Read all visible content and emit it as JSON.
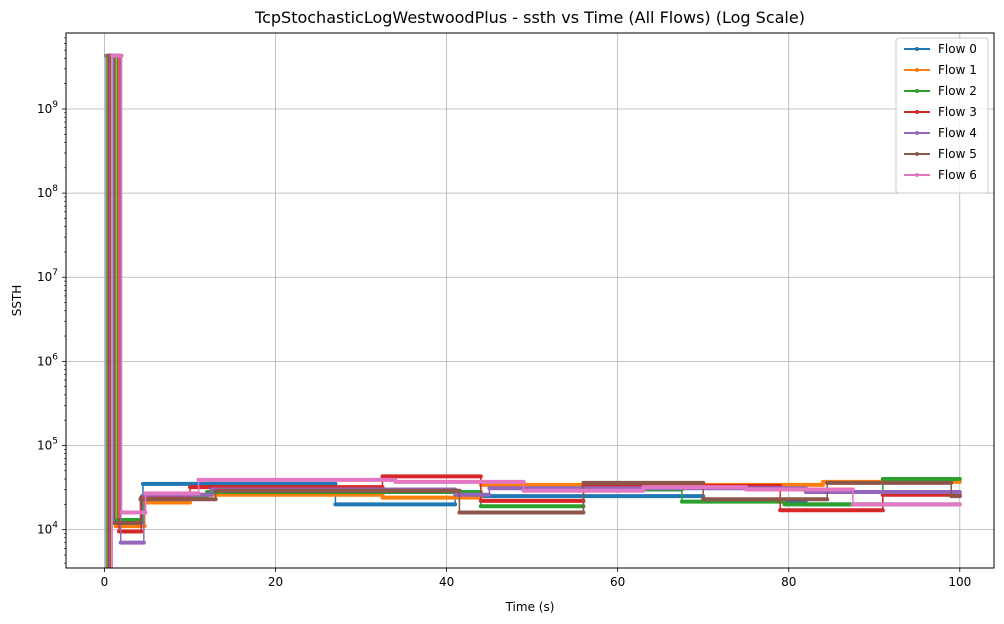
{
  "chart_data": {
    "type": "line",
    "title": "TcpStochasticLogWestwoodPlus - ssth vs Time (All Flows) (Log Scale)",
    "xlabel": "Time (s)",
    "ylabel": "SSTH",
    "xscale": "linear",
    "yscale": "log",
    "xlim": [
      -4.5,
      104
    ],
    "ylim": [
      3500,
      8000000000
    ],
    "x_ticks": [
      0,
      20,
      40,
      60,
      80,
      100
    ],
    "y_ticks": [
      {
        "value": 10000,
        "base": "10",
        "exp": "4"
      },
      {
        "value": 100000,
        "base": "10",
        "exp": "5"
      },
      {
        "value": 1000000,
        "base": "10",
        "exp": "6"
      },
      {
        "value": 10000000,
        "base": "10",
        "exp": "7"
      },
      {
        "value": 100000000,
        "base": "10",
        "exp": "8"
      },
      {
        "value": 1000000000,
        "base": "10",
        "exp": "9"
      }
    ],
    "grid": true,
    "legend_position": "top-right",
    "series": [
      {
        "name": "Flow 0",
        "color": "#1f77b4",
        "points": [
          [
            0.2,
            1000
          ],
          [
            0.2,
            4294967295
          ],
          [
            1.1,
            4294967295
          ],
          [
            1.1,
            12000
          ],
          [
            4.5,
            12000
          ],
          [
            4.5,
            35000
          ],
          [
            27,
            35000
          ],
          [
            27,
            20000
          ],
          [
            41,
            20000
          ],
          [
            41,
            25000
          ],
          [
            70,
            25000
          ],
          [
            70,
            22000
          ],
          [
            82,
            22000
          ],
          [
            82,
            20000
          ],
          [
            100,
            20000
          ]
        ]
      },
      {
        "name": "Flow 1",
        "color": "#ff7f0e",
        "points": [
          [
            0.3,
            1000
          ],
          [
            0.3,
            4294967295
          ],
          [
            1.3,
            4294967295
          ],
          [
            1.3,
            11000
          ],
          [
            4.7,
            11000
          ],
          [
            4.7,
            21000
          ],
          [
            10,
            21000
          ],
          [
            10,
            26000
          ],
          [
            32.5,
            26000
          ],
          [
            32.5,
            24000
          ],
          [
            44,
            24000
          ],
          [
            44,
            34000
          ],
          [
            84,
            34000
          ],
          [
            84,
            37000
          ],
          [
            100,
            37000
          ]
        ]
      },
      {
        "name": "Flow 2",
        "color": "#2ca02c",
        "points": [
          [
            0.4,
            1000
          ],
          [
            0.4,
            4294967295
          ],
          [
            1.5,
            4294967295
          ],
          [
            1.5,
            13000
          ],
          [
            4.4,
            13000
          ],
          [
            4.4,
            25000
          ],
          [
            12,
            25000
          ],
          [
            12,
            28000
          ],
          [
            44,
            28000
          ],
          [
            44,
            19000
          ],
          [
            56,
            19000
          ],
          [
            56,
            30000
          ],
          [
            67.5,
            30000
          ],
          [
            67.5,
            21500
          ],
          [
            79.5,
            21500
          ],
          [
            79.5,
            20000
          ],
          [
            91,
            20000
          ],
          [
            91,
            40000
          ],
          [
            100,
            40000
          ]
        ]
      },
      {
        "name": "Flow 3",
        "color": "#d62728",
        "points": [
          [
            0.5,
            1000
          ],
          [
            0.5,
            4294967295
          ],
          [
            1.7,
            4294967295
          ],
          [
            1.7,
            9500
          ],
          [
            4.3,
            9500
          ],
          [
            4.3,
            24000
          ],
          [
            10,
            24000
          ],
          [
            10,
            32000
          ],
          [
            32.5,
            32000
          ],
          [
            32.5,
            43000
          ],
          [
            44,
            43000
          ],
          [
            44,
            22000
          ],
          [
            56,
            22000
          ],
          [
            56,
            33000
          ],
          [
            79,
            33000
          ],
          [
            79,
            17000
          ],
          [
            91,
            17000
          ],
          [
            91,
            26000
          ],
          [
            100,
            26000
          ]
        ]
      },
      {
        "name": "Flow 4",
        "color": "#9467bd",
        "points": [
          [
            0.6,
            1000
          ],
          [
            0.6,
            4294967295
          ],
          [
            1.9,
            4294967295
          ],
          [
            1.9,
            7000
          ],
          [
            4.6,
            7000
          ],
          [
            4.6,
            26000
          ],
          [
            12.5,
            26000
          ],
          [
            12.5,
            30000
          ],
          [
            41,
            30000
          ],
          [
            41,
            26000
          ],
          [
            45,
            26000
          ],
          [
            45,
            31000
          ],
          [
            82,
            31000
          ],
          [
            82,
            28000
          ],
          [
            100,
            28000
          ]
        ]
      },
      {
        "name": "Flow 5",
        "color": "#8c564b",
        "points": [
          [
            0.7,
            1000
          ],
          [
            0.7,
            4294967295
          ],
          [
            1.2,
            4294967295
          ],
          [
            1.2,
            12000
          ],
          [
            4.2,
            12000
          ],
          [
            4.2,
            23000
          ],
          [
            13,
            23000
          ],
          [
            13,
            29000
          ],
          [
            41.5,
            29000
          ],
          [
            41.5,
            16000
          ],
          [
            56,
            16000
          ],
          [
            56,
            36000
          ],
          [
            70,
            36000
          ],
          [
            70,
            23000
          ],
          [
            84.5,
            23000
          ],
          [
            84.5,
            36000
          ],
          [
            99,
            36000
          ],
          [
            99,
            25000
          ],
          [
            100,
            25000
          ]
        ]
      },
      {
        "name": "Flow 6",
        "color": "#e377c2",
        "points": [
          [
            0.9,
            1000
          ],
          [
            0.9,
            4294967295
          ],
          [
            2.0,
            4294967295
          ],
          [
            2.0,
            16000
          ],
          [
            4.8,
            16000
          ],
          [
            4.8,
            27000
          ],
          [
            11,
            27000
          ],
          [
            11,
            39000
          ],
          [
            34,
            39000
          ],
          [
            34,
            37000
          ],
          [
            49,
            37000
          ],
          [
            49,
            29000
          ],
          [
            63,
            29000
          ],
          [
            63,
            32000
          ],
          [
            75,
            32000
          ],
          [
            75,
            30000
          ],
          [
            87.5,
            30000
          ],
          [
            87.5,
            20000
          ],
          [
            100,
            20000
          ]
        ]
      }
    ]
  }
}
